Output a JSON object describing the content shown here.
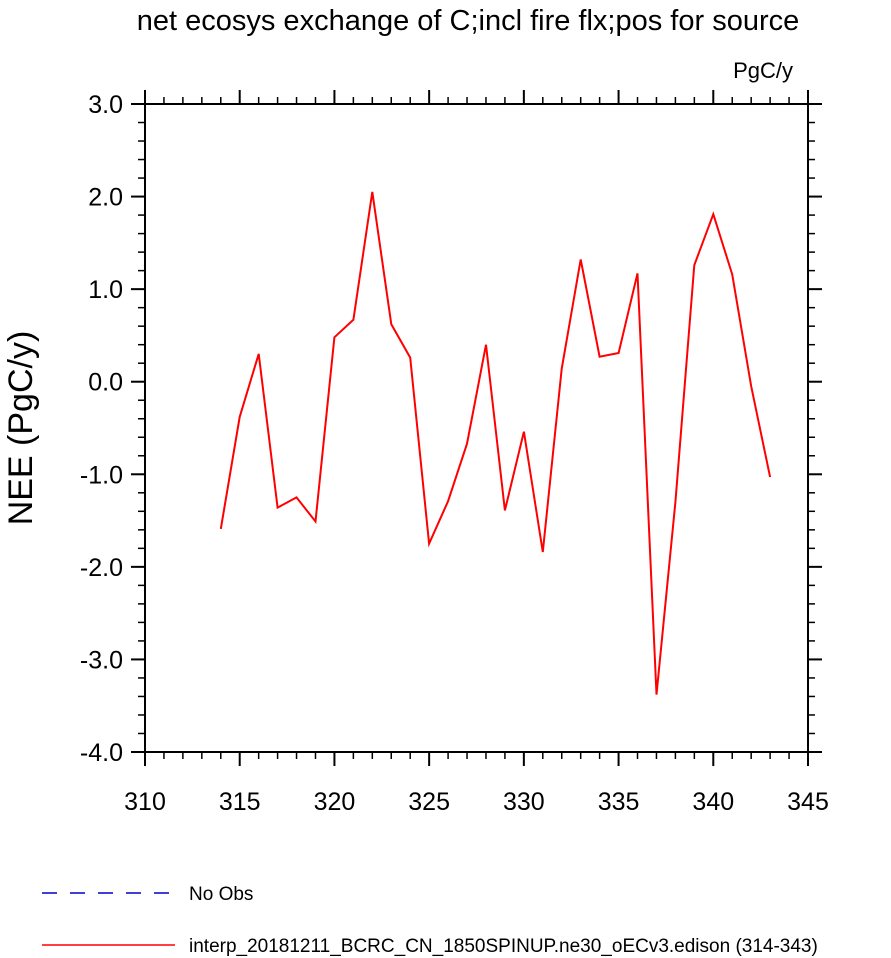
{
  "chart_data": {
    "type": "line",
    "title": "net ecosys exchange of C;incl fire flx;pos for source",
    "units_label": "PgC/y",
    "ylabel": "NEE  (PgC/y)",
    "xlabel": "",
    "xlim": [
      310,
      345
    ],
    "ylim": [
      -4.0,
      3.0
    ],
    "x_ticks": [
      "310",
      "315",
      "320",
      "325",
      "330",
      "335",
      "340",
      "345"
    ],
    "y_ticks": [
      "3.0",
      "2.0",
      "1.0",
      "0.0",
      "-1.0",
      "-2.0",
      "-3.0",
      "-4.0"
    ],
    "series": [
      {
        "name": "No Obs",
        "color": "#0000cc",
        "dash": "dashed",
        "x": [],
        "values": []
      },
      {
        "name": "interp_20181211_BCRC_CN_1850SPINUP.ne30_oECv3.edison (314-343)",
        "color": "#ff0000",
        "dash": "solid",
        "x": [
          314,
          315,
          316,
          317,
          318,
          319,
          320,
          321,
          322,
          323,
          324,
          325,
          326,
          327,
          328,
          329,
          330,
          331,
          332,
          333,
          334,
          335,
          336,
          337,
          338,
          339,
          340,
          341,
          342,
          343
        ],
        "values": [
          -1.59,
          -0.38,
          0.3,
          -1.36,
          -1.25,
          -1.51,
          0.48,
          0.67,
          2.05,
          0.62,
          0.26,
          -1.75,
          -1.29,
          -0.67,
          0.4,
          -1.39,
          -0.54,
          -1.84,
          0.14,
          1.32,
          0.27,
          0.31,
          1.17,
          -3.38,
          -1.3,
          1.26,
          1.81,
          1.16,
          -0.05,
          -1.03
        ]
      }
    ]
  }
}
